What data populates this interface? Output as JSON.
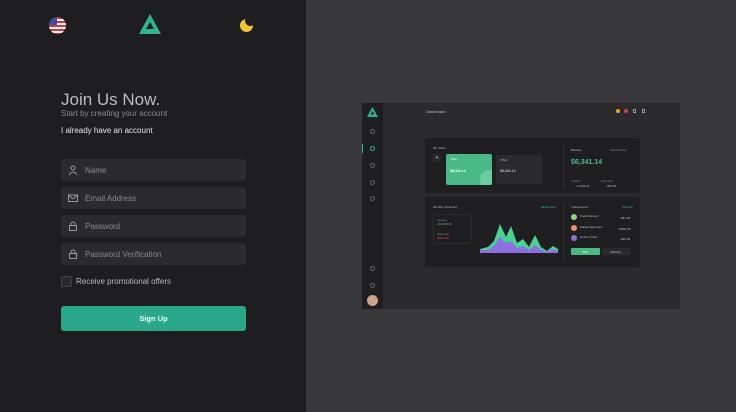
{
  "header": {
    "language_flag": "us-flag-icon",
    "logo": "triangle-logo-icon",
    "theme_toggle": "moon-icon",
    "accent": "#2aa889"
  },
  "form": {
    "title": "Join Us Now.",
    "subtitle": "Start by creating your account",
    "login_link": "I already have an account",
    "fields": [
      {
        "icon": "user-icon",
        "placeholder": "Name"
      },
      {
        "icon": "mail-icon",
        "placeholder": "Email Address"
      },
      {
        "icon": "lock-icon",
        "placeholder": "Password"
      },
      {
        "icon": "lock-icon",
        "placeholder": "Password Verification"
      }
    ],
    "checkbox_label": "Receive promotional offers",
    "submit": "Sign Up"
  },
  "preview": {
    "page_title": "Dashboard",
    "my_cards": "My Cards",
    "card1_brand": "VISA",
    "card1_amount": "$6,341.14",
    "card2_brand": "VISA",
    "card2_amount": "$6,341.14",
    "balance_label": "Balance",
    "balance_period": "Last 30 days",
    "balance": "$6,341.14",
    "income_label": "Income",
    "income": "+3,604.12",
    "expense_label": "Expense",
    "expense": "-306.81",
    "monthly_summary": "Monthly Summary",
    "all_reports": "All Reports",
    "ms_income_label": "Income",
    "ms_income": "+$6,000.00",
    "ms_expense_label": "Expense",
    "ms_expense": "-$664.23",
    "transactions": "Transactions",
    "view_all": "View All",
    "tx": [
      {
        "name": "Food Delivery",
        "amount": "-$81.00"
      },
      {
        "name": "Market Earnings",
        "amount": "+$360.00"
      },
      {
        "name": "Online Order",
        "amount": "-$50.00"
      }
    ],
    "pay": "Pay",
    "settings": "Settings"
  }
}
